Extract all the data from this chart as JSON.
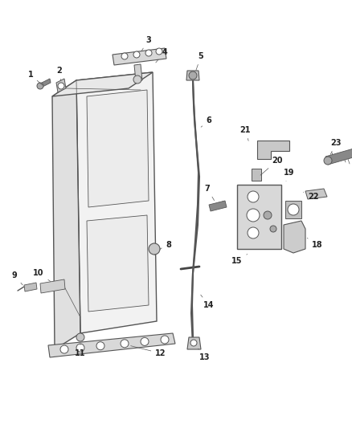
{
  "background_color": "#ffffff",
  "figure_width": 4.38,
  "figure_height": 5.33,
  "dpi": 100,
  "line_color": "#555555",
  "label_fontsize": 7,
  "label_color": "#222222"
}
